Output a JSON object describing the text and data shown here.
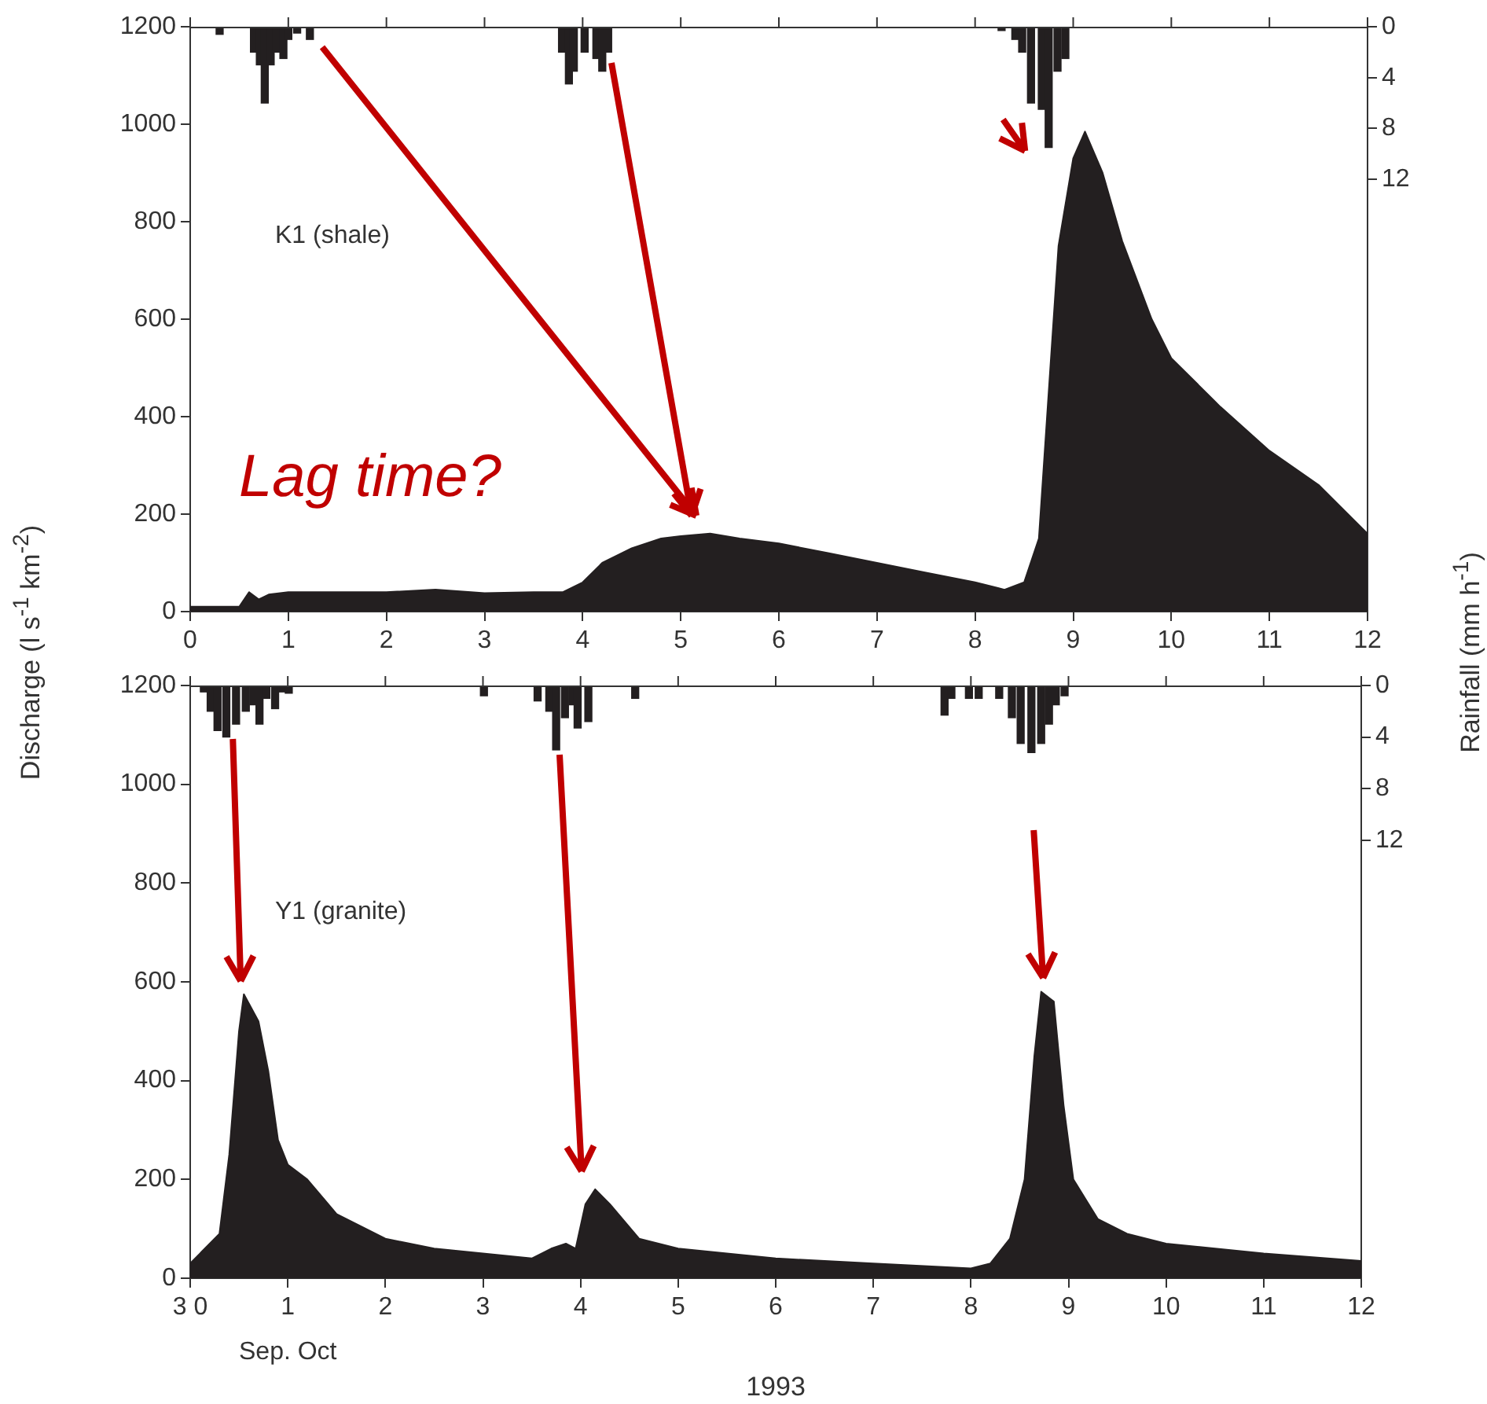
{
  "chart_data": [
    {
      "type": "area",
      "xlim": [
        0,
        12
      ],
      "xticks": [
        0,
        1,
        2,
        3,
        4,
        5,
        6,
        7,
        8,
        9,
        10,
        11,
        12
      ],
      "ylim": [
        0,
        1200
      ],
      "yticks": [
        0,
        200,
        400,
        600,
        800,
        1000,
        1200
      ],
      "y2lim": [
        46,
        0
      ],
      "y2ticks": [
        0,
        4,
        8,
        12
      ],
      "ylabel": "Discharge (l s$^{-1}$ km$^{-2}$)",
      "y2label": "Rainfall (mm h$^{-1}$)",
      "grid": false,
      "legend": false,
      "annotations": [
        "K1 (shale)",
        "Lag time?"
      ],
      "series": [
        {
          "color": "#231f20",
          "x": [
            0,
            0.5,
            0.6,
            0.7,
            0.8,
            1,
            2,
            2.5,
            3,
            3.5,
            3.8,
            4.0,
            4.2,
            4.5,
            4.8,
            5.0,
            5.3,
            5.6,
            6,
            6.5,
            7,
            7.5,
            8,
            8.3,
            8.5,
            8.65,
            8.75,
            8.85,
            9.0,
            9.12,
            9.3,
            9.5,
            9.8,
            10.0,
            10.5,
            11,
            11.5,
            12
          ],
          "values": [
            10,
            10,
            40,
            25,
            35,
            40,
            40,
            45,
            38,
            40,
            40,
            60,
            100,
            130,
            150,
            155,
            160,
            150,
            140,
            120,
            100,
            80,
            60,
            45,
            60,
            150,
            450,
            750,
            930,
            985,
            900,
            760,
            600,
            520,
            420,
            330,
            260,
            160
          ]
        },
        {
          "type": "bar",
          "axis": "y2",
          "color": "#231f20",
          "x": [
            0.3,
            0.65,
            0.71,
            0.76,
            0.82,
            0.88,
            0.95,
            1.0,
            1.09,
            1.22,
            3.79,
            3.86,
            3.91,
            4.02,
            4.14,
            4.2,
            4.26,
            8.27,
            8.41,
            8.48,
            8.57,
            8.68,
            8.75,
            8.84,
            8.92
          ],
          "values": [
            0.6,
            2,
            3,
            6,
            3,
            2,
            2.5,
            1,
            0.5,
            1,
            2,
            4.5,
            3.5,
            2,
            2.5,
            3.5,
            2,
            0.3,
            1,
            2,
            6,
            6.5,
            9.5,
            3.5,
            2.5
          ]
        }
      ]
    },
    {
      "type": "area",
      "xlim": [
        0,
        12
      ],
      "xticks": [
        {
          "value": 0,
          "label": "3 0"
        },
        1,
        2,
        3,
        4,
        5,
        6,
        7,
        8,
        9,
        10,
        11,
        12
      ],
      "ylim": [
        0,
        1200
      ],
      "yticks": [
        0,
        200,
        400,
        600,
        800,
        1000,
        1200
      ],
      "y2lim": [
        46,
        0
      ],
      "y2ticks": [
        0,
        4,
        8,
        12
      ],
      "xlabel": "1993",
      "grid": false,
      "legend": false,
      "annotations": [
        "Y1 (granite)",
        "Sep. Oct"
      ],
      "series": [
        {
          "color": "#231f20",
          "x": [
            0,
            0.1,
            0.3,
            0.4,
            0.5,
            0.55,
            0.7,
            0.8,
            0.9,
            1.0,
            1.2,
            1.5,
            2,
            2.5,
            3,
            3.5,
            3.7,
            3.85,
            3.95,
            4.05,
            4.15,
            4.3,
            4.6,
            5,
            6,
            7,
            8,
            8.2,
            8.4,
            8.55,
            8.65,
            8.72,
            8.85,
            8.95,
            9.05,
            9.3,
            9.6,
            10,
            11,
            12
          ],
          "values": [
            30,
            50,
            90,
            250,
            500,
            575,
            520,
            420,
            280,
            230,
            200,
            130,
            80,
            60,
            50,
            40,
            60,
            70,
            60,
            150,
            180,
            150,
            80,
            60,
            40,
            30,
            20,
            30,
            80,
            200,
            450,
            580,
            560,
            350,
            200,
            120,
            90,
            70,
            50,
            35
          ]
        },
        {
          "type": "bar",
          "axis": "y2",
          "color": "#231f20",
          "x": [
            0.14,
            0.21,
            0.28,
            0.37,
            0.47,
            0.57,
            0.65,
            0.71,
            0.78,
            0.87,
            0.94,
            1.01,
            3.01,
            3.56,
            3.68,
            3.75,
            3.84,
            3.92,
            3.97,
            4.08,
            4.56,
            7.73,
            7.8,
            7.98,
            8.08,
            8.29,
            8.42,
            8.51,
            8.62,
            8.72,
            8.8,
            8.87,
            8.96
          ],
          "values": [
            0.5,
            2,
            3.5,
            4,
            3,
            2,
            1.5,
            3,
            1,
            1.8,
            0.5,
            0.6,
            0.8,
            1.2,
            2,
            5,
            2.5,
            1.5,
            3.3,
            2.8,
            1,
            2.3,
            1,
            1,
            1,
            1,
            2.5,
            4.5,
            5.2,
            4.5,
            3,
            1.5,
            0.8
          ]
        }
      ]
    }
  ]
}
